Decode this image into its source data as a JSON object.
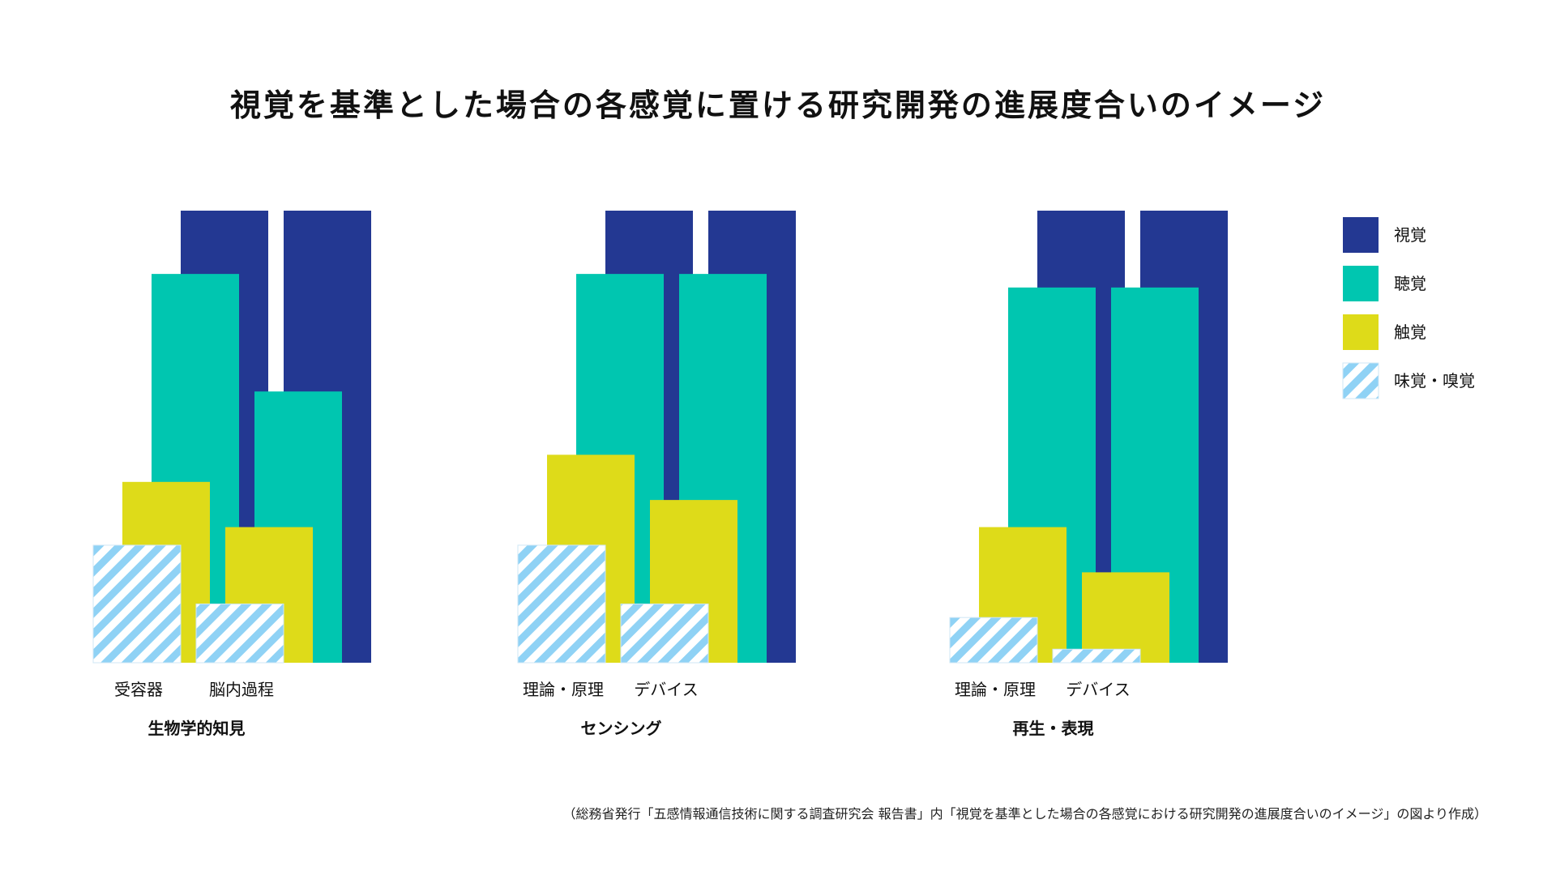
{
  "title": "視覚を基準とした場合の各感覚に置ける研究開発の進展度合いのイメージ",
  "footnote": "（総務省発行「五感情報通信技術に関する調査研究会 報告書」内「視覚を基準とした場合の各感覚における研究開発の進展度合いのイメージ」の図より作成）",
  "colors": {
    "vision": "#233892",
    "hearing": "#00c6b0",
    "touch": "#dedb19",
    "taste_smell_stripe": "#8fd2f5",
    "taste_smell_bg": "#ffffff"
  },
  "chart_data": {
    "type": "bar",
    "xlabel": "",
    "ylabel": "",
    "ylim": [
      0,
      100
    ],
    "grid": false,
    "legend_position": "right",
    "series": [
      {
        "key": "vision",
        "name": "視覚",
        "pattern": "solid"
      },
      {
        "key": "hearing",
        "name": "聴覚",
        "pattern": "solid"
      },
      {
        "key": "touch",
        "name": "触覚",
        "pattern": "solid"
      },
      {
        "key": "taste_smell",
        "name": "味覚・嗅覚",
        "pattern": "stripes"
      }
    ],
    "groups": [
      {
        "label": "生物学的知見",
        "subcategories": [
          {
            "label": "受容器",
            "values": {
              "vision": 100,
              "hearing": 86,
              "touch": 40,
              "taste_smell": 26
            }
          },
          {
            "label": "脳内過程",
            "values": {
              "vision": 100,
              "hearing": 60,
              "touch": 30,
              "taste_smell": 13
            }
          }
        ]
      },
      {
        "label": "センシング",
        "subcategories": [
          {
            "label": "理論・原理",
            "values": {
              "vision": 100,
              "hearing": 86,
              "touch": 46,
              "taste_smell": 26
            }
          },
          {
            "label": "デバイス",
            "values": {
              "vision": 100,
              "hearing": 86,
              "touch": 36,
              "taste_smell": 13
            }
          }
        ]
      },
      {
        "label": "再生・表現",
        "subcategories": [
          {
            "label": "理論・原理",
            "values": {
              "vision": 100,
              "hearing": 83,
              "touch": 30,
              "taste_smell": 10
            }
          },
          {
            "label": "デバイス",
            "values": {
              "vision": 100,
              "hearing": 83,
              "touch": 20,
              "taste_smell": 3
            }
          }
        ]
      }
    ]
  }
}
